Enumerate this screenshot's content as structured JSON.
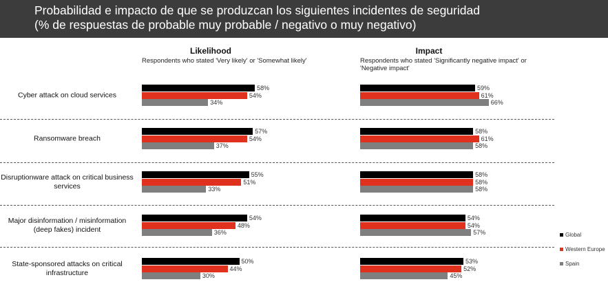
{
  "header": {
    "line1": "Probabilidad e impacto de que se produzcan los siguientes incidentes de seguridad",
    "line2": "(% de respuestas de probable muy probable / negativo o muy negativo)"
  },
  "chart_data": {
    "type": "bar",
    "categories": [
      "Cyber attack on cloud services",
      "Ransomware breach",
      "Disruptionware attack on critical business services",
      "Major disinformation / misinformation (deep fakes) incident",
      "State-sponsored attacks on critical infrastructure"
    ],
    "panels": [
      {
        "title": "Likelihood",
        "subtitle": "Respondents who stated 'Very likely' or 'Somewhat likely'",
        "series": [
          {
            "name": "Global",
            "values": [
              58,
              57,
              55,
              54,
              50
            ]
          },
          {
            "name": "Western Europe",
            "values": [
              54,
              54,
              51,
              48,
              44
            ]
          },
          {
            "name": "Spain",
            "values": [
              34,
              37,
              33,
              36,
              30
            ]
          }
        ]
      },
      {
        "title": "Impact",
        "subtitle": "Respondents who stated 'Significantly negative impact' or 'Negative impact'",
        "series": [
          {
            "name": "Global",
            "values": [
              59,
              58,
              58,
              54,
              53
            ]
          },
          {
            "name": "Western Europe",
            "values": [
              61,
              61,
              58,
              54,
              52
            ]
          },
          {
            "name": "Spain",
            "values": [
              66,
              58,
              58,
              57,
              45
            ]
          }
        ]
      }
    ],
    "unit": "%",
    "legend": [
      "Global",
      "Western Europe",
      "Spain"
    ],
    "legend_position": "right",
    "colors": [
      "#000000",
      "#e0301e",
      "#7f7f7f"
    ]
  }
}
